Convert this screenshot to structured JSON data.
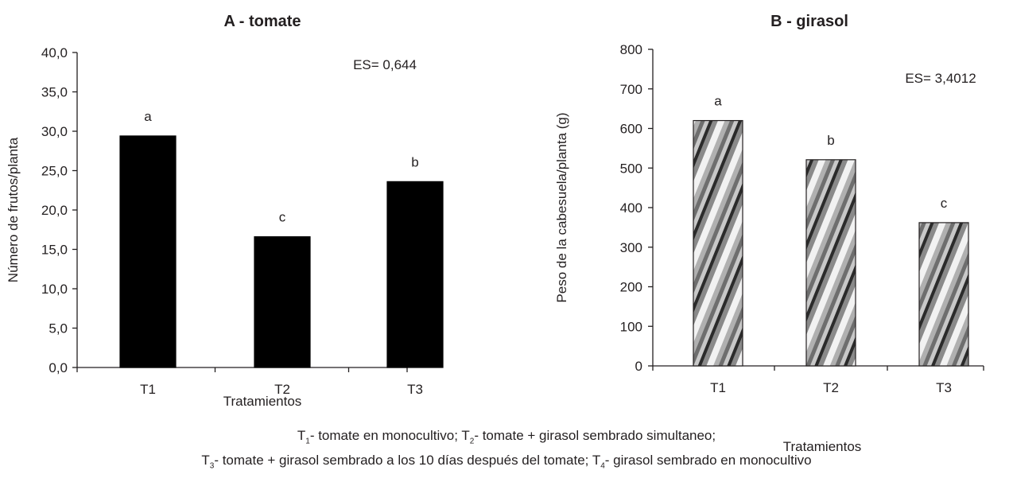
{
  "chart_data": [
    {
      "type": "bar",
      "title": "A - tomate",
      "xlabel": "Tratamientos",
      "ylabel": "Número de frutos/planta",
      "categories": [
        "T1",
        "T2",
        "T3"
      ],
      "values": [
        29.4,
        16.6,
        23.6
      ],
      "letters": [
        "a",
        "c",
        "b"
      ],
      "annotation": "ES= 0,644",
      "ylim": [
        0,
        40
      ],
      "yticks": [
        "0,0",
        "5,0",
        "10,0",
        "15,0",
        "20,0",
        "25,0",
        "30,0",
        "35,0",
        "40,0"
      ],
      "grid": false,
      "bar_fill": "#000000"
    },
    {
      "type": "bar",
      "title": "B - girasol",
      "xlabel": "Tratamientos",
      "ylabel": "Peso de la cabesuela/planta (g)",
      "categories": [
        "T1",
        "T2",
        "T3"
      ],
      "values": [
        620,
        521,
        362
      ],
      "letters": [
        "a",
        "b",
        "c"
      ],
      "annotation": "ES= 3,4012",
      "ylim": [
        0,
        800
      ],
      "yticks": [
        "0",
        "100",
        "200",
        "300",
        "400",
        "500",
        "600",
        "700",
        "800"
      ],
      "grid": false,
      "bar_fill": "striped-gray"
    }
  ],
  "caption": {
    "line1": [
      {
        "t": "T"
      },
      {
        "s": "1"
      },
      {
        "t": "- tomate en monocultivo; T"
      },
      {
        "s": "2"
      },
      {
        "t": "- tomate + girasol sembrado simultaneo;"
      }
    ],
    "line2": [
      {
        "t": "T"
      },
      {
        "s": "3"
      },
      {
        "t": "- tomate + girasol sembrado a los 10 días después del tomate; T"
      },
      {
        "s": "4"
      },
      {
        "t": "- girasol sembrado en monocultivo"
      }
    ]
  }
}
